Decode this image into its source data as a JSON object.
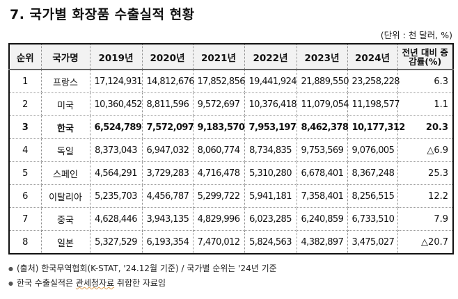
{
  "title": "7. 국가별 화장품 수출실적 현황",
  "unit": "(단위 : 천 달러, %)",
  "table": {
    "headers": [
      "순위",
      "국가명",
      "2019년",
      "2020년",
      "2021년",
      "2022년",
      "2023년",
      "2024년",
      "전년 대비 증감률(%)"
    ],
    "rows": [
      {
        "rank": "1",
        "country": "프랑스",
        "y2019": "17,124,931",
        "y2020": "14,812,676",
        "y2021": "17,852,856",
        "y2022": "19,441,924",
        "y2023": "21,889,550",
        "y2024": "23,258,228",
        "rate": "6.3"
      },
      {
        "rank": "2",
        "country": "미국",
        "y2019": "10,360,452",
        "y2020": "8,811,596",
        "y2021": "9,572,697",
        "y2022": "10,376,418",
        "y2023": "11,079,054",
        "y2024": "11,198,577",
        "rate": "1.1"
      },
      {
        "rank": "3",
        "country": "한국",
        "y2019": "6,524,789",
        "y2020": "7,572,097",
        "y2021": "9,183,570",
        "y2022": "7,953,197",
        "y2023": "8,462,378",
        "y2024": "10,177,312",
        "rate": "20.3"
      },
      {
        "rank": "4",
        "country": "독일",
        "y2019": "8,373,043",
        "y2020": "6,947,032",
        "y2021": "8,060,774",
        "y2022": "8,734,835",
        "y2023": "9,753,569",
        "y2024": "9,076,005",
        "rate": "△6.9"
      },
      {
        "rank": "5",
        "country": "스페인",
        "y2019": "4,564,291",
        "y2020": "3,729,283",
        "y2021": "4,716,478",
        "y2022": "5,310,280",
        "y2023": "6,678,401",
        "y2024": "8,367,248",
        "rate": "25.3"
      },
      {
        "rank": "6",
        "country": "이탈리아",
        "y2019": "5,235,703",
        "y2020": "4,456,787",
        "y2021": "5,299,722",
        "y2022": "5,941,181",
        "y2023": "7,358,401",
        "y2024": "8,256,515",
        "rate": "12.2"
      },
      {
        "rank": "7",
        "country": "중국",
        "y2019": "4,628,446",
        "y2020": "3,943,135",
        "y2021": "4,829,996",
        "y2022": "6,023,285",
        "y2023": "6,240,859",
        "y2024": "6,733,510",
        "rate": "7.9"
      },
      {
        "rank": "8",
        "country": "일본",
        "y2019": "5,327,529",
        "y2020": "6,193,354",
        "y2021": "7,470,012",
        "y2022": "5,824,563",
        "y2023": "4,382,897",
        "y2024": "3,475,027",
        "rate": "△20.7"
      }
    ]
  },
  "notes": {
    "bullet": "●",
    "line1": "(출처) 한국무역협회(K-STAT, '24.12월 기준) / 국가별 순위는 '24년 기준",
    "line2_a": "한국 수출실적은 ",
    "line2_b": "관세청자료",
    "line2_c": " 취합한 자료임"
  }
}
